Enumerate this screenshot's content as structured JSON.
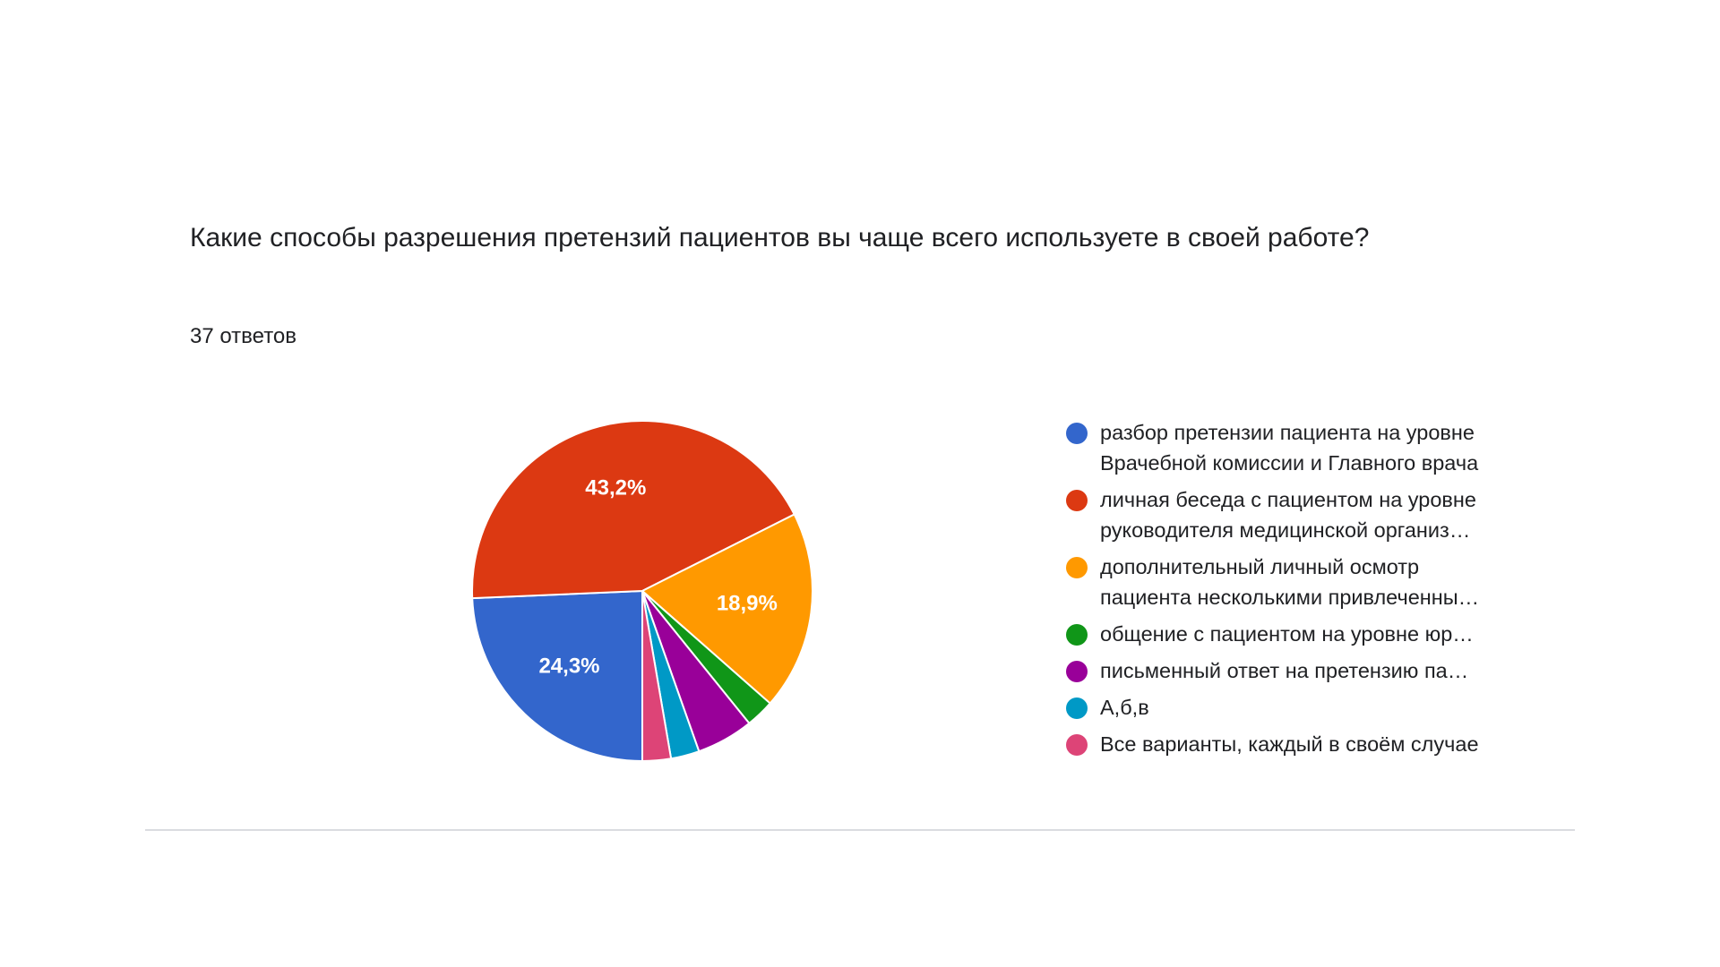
{
  "question": {
    "title": "Какие способы разрешения претензий пациентов вы чаще всего используете в своей работе?",
    "responses": "37 ответов"
  },
  "chart_data": {
    "type": "pie",
    "title": "Какие способы разрешения претензий пациентов вы чаще всего используете в своей работе?",
    "legend_position": "right",
    "start_angle_deg": 90,
    "direction": "clockwise",
    "slices": [
      {
        "label": "разбор претензии пациента на уровне\nВрачебной комиссии и Главного врача",
        "value": 24.3,
        "display": "24,3%",
        "color": "#3366cc"
      },
      {
        "label": "личная беседа с пациентом на уровне\nруководителя медицинской организ…",
        "value": 43.2,
        "display": "43,2%",
        "color": "#dc3912"
      },
      {
        "label": "дополнительный личный осмотр\nпациента несколькими привлеченны…",
        "value": 18.9,
        "display": "18,9%",
        "color": "#ff9900"
      },
      {
        "label": "общение с пациентом на уровне юр…",
        "value": 2.7,
        "display": "",
        "color": "#109618"
      },
      {
        "label": "письменный ответ на претензию па…",
        "value": 5.4,
        "display": "",
        "color": "#990099"
      },
      {
        "label": "А,б,в",
        "value": 2.7,
        "display": "",
        "color": "#0099c6"
      },
      {
        "label": "Все варианты, каждый в своём случае",
        "value": 2.7,
        "display": "",
        "color": "#dd4477"
      }
    ]
  }
}
